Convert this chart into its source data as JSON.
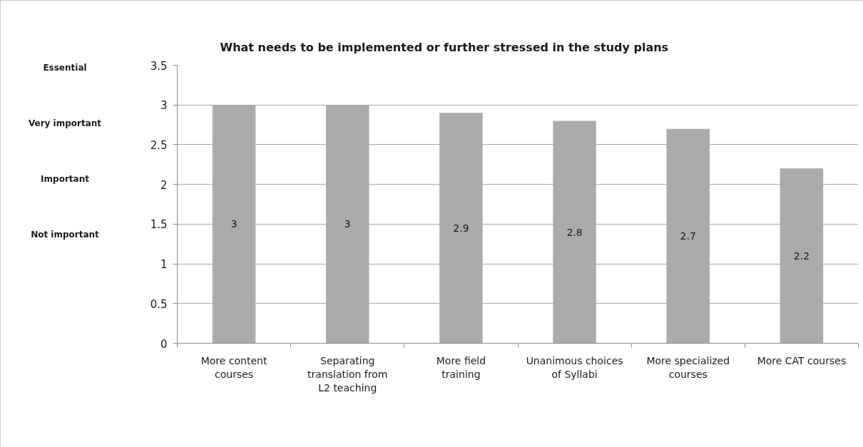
{
  "chart_data": {
    "type": "bar",
    "title": "What needs to be implemented or further stressed in the study plans",
    "categories": [
      "More content courses",
      "Separating translation from L2 teaching",
      "More field training",
      "Unanimous choices of Syllabi",
      "More specialized courses",
      "More CAT courses"
    ],
    "values": [
      3,
      3,
      2.9,
      2.8,
      2.7,
      2.2
    ],
    "color": "#ababab",
    "ylim": [
      0,
      3.5
    ],
    "yticks": [
      0,
      0.5,
      1,
      1.5,
      2,
      2.5,
      3,
      3.5
    ],
    "annotations": [
      "Essential",
      "Very important",
      "Important",
      "Not important"
    ],
    "grid": "y",
    "data_labels": true
  }
}
